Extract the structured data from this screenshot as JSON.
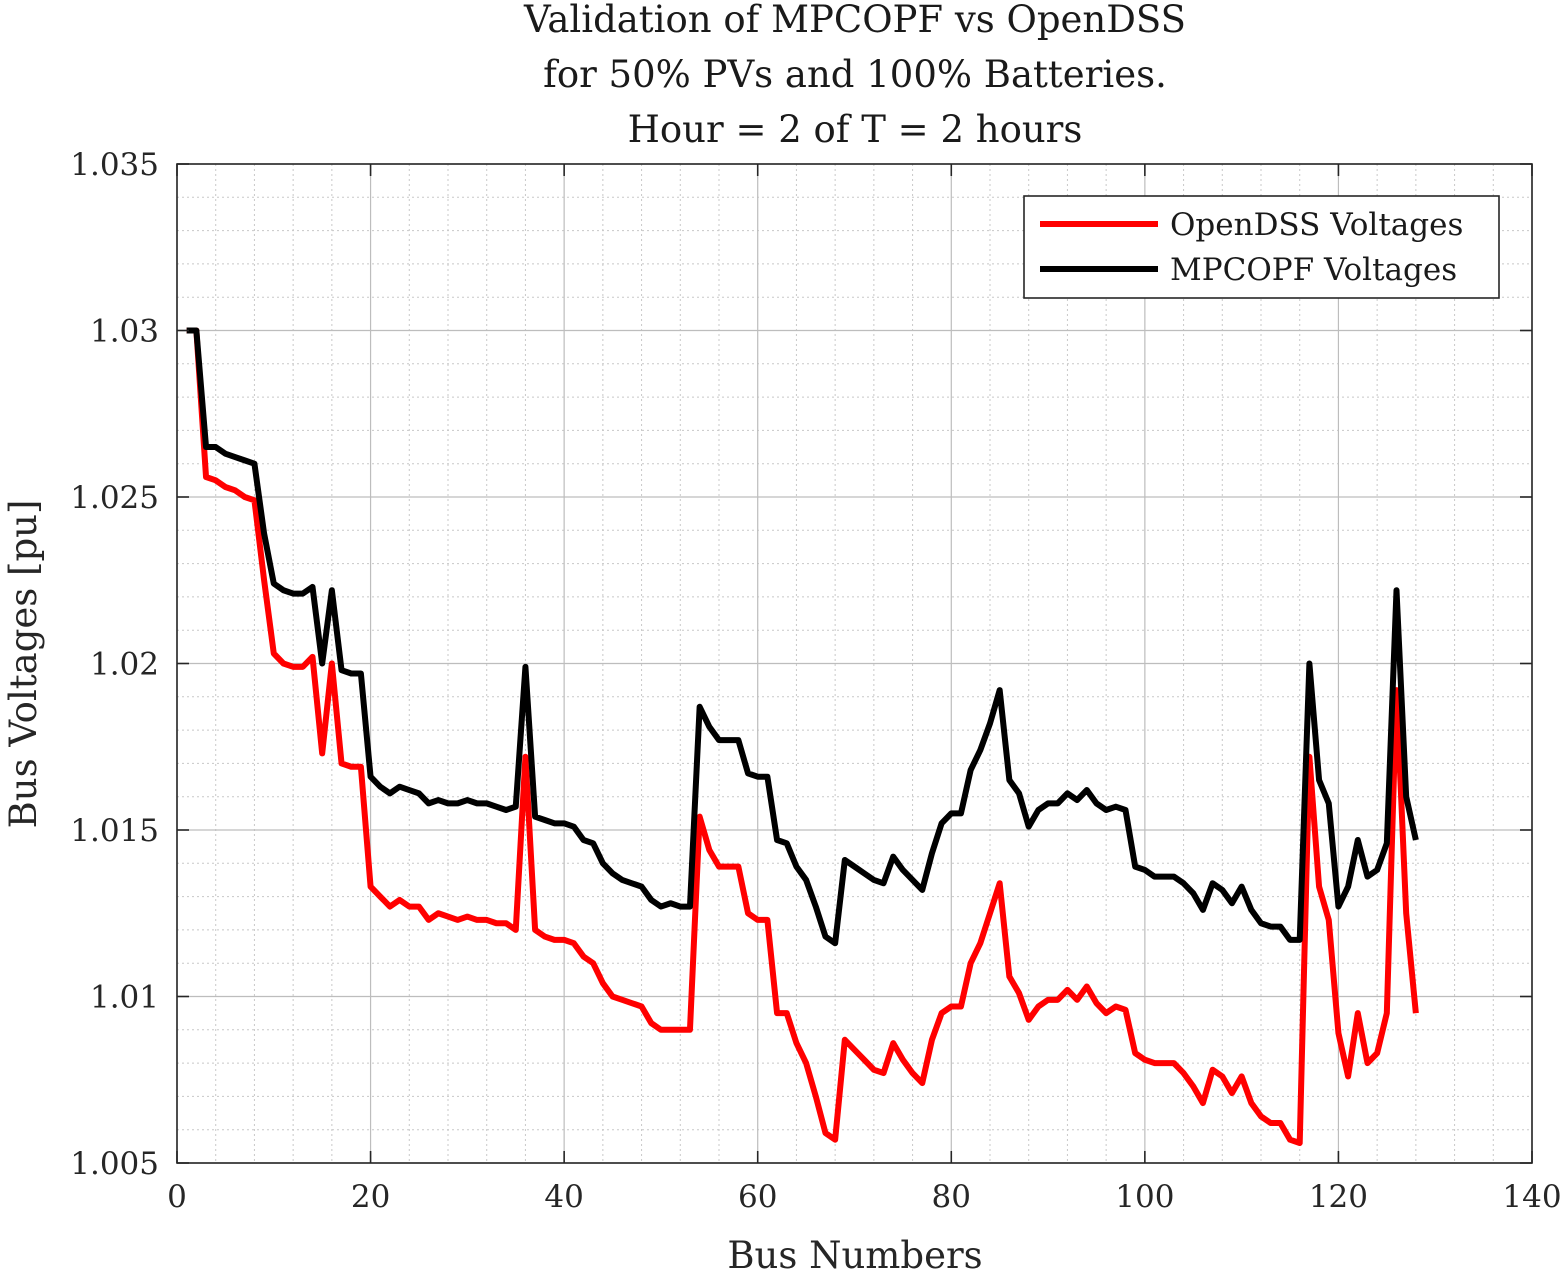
{
  "chart_data": {
    "type": "line",
    "title": [
      "Validation of MPCOPF vs OpenDSS",
      "for 50% PVs and 100% Batteries.",
      "Hour = 2 of T = 2 hours"
    ],
    "xlabel": "Bus Numbers",
    "ylabel": "Bus Voltages [pu]",
    "xlim": [
      0,
      140
    ],
    "ylim": [
      1.005,
      1.035
    ],
    "xticks": [
      0,
      20,
      40,
      60,
      80,
      100,
      120,
      140
    ],
    "xtick_labels": [
      "0",
      "20",
      "40",
      "60",
      "80",
      "100",
      "120",
      "140"
    ],
    "yticks": [
      1.005,
      1.01,
      1.015,
      1.02,
      1.025,
      1.03,
      1.035
    ],
    "ytick_labels": [
      "1.005",
      "1.01",
      "1.015",
      "1.02",
      "1.025",
      "1.03",
      "1.035"
    ],
    "grid": true,
    "minor_grid": true,
    "legend_position": "top-right",
    "series": [
      {
        "name": "OpenDSS Voltages",
        "color": "#ff0000",
        "x": [
          1,
          2,
          3,
          4,
          5,
          6,
          7,
          8,
          9,
          10,
          11,
          12,
          13,
          14,
          15,
          16,
          17,
          18,
          19,
          20,
          21,
          22,
          23,
          24,
          25,
          26,
          27,
          28,
          29,
          30,
          31,
          32,
          33,
          34,
          35,
          36,
          37,
          38,
          39,
          40,
          41,
          42,
          43,
          44,
          45,
          46,
          47,
          48,
          49,
          50,
          51,
          52,
          53,
          54,
          55,
          56,
          57,
          58,
          59,
          60,
          61,
          62,
          63,
          64,
          65,
          66,
          67,
          68,
          69,
          70,
          71,
          72,
          73,
          74,
          75,
          76,
          77,
          78,
          79,
          80,
          81,
          82,
          83,
          84,
          85,
          86,
          87,
          88,
          89,
          90,
          91,
          92,
          93,
          94,
          95,
          96,
          97,
          98,
          99,
          100,
          101,
          102,
          103,
          104,
          105,
          106,
          107,
          108,
          109,
          110,
          111,
          112,
          113,
          114,
          115,
          116,
          117,
          118,
          119,
          120,
          121,
          122,
          123,
          124,
          125,
          126,
          127,
          128
        ],
        "values": [
          1.03,
          1.03,
          1.0256,
          1.0255,
          1.0253,
          1.0252,
          1.025,
          1.0249,
          1.0225,
          1.0203,
          1.02,
          1.0199,
          1.0199,
          1.0202,
          1.0173,
          1.02,
          1.017,
          1.0169,
          1.0169,
          1.0133,
          1.013,
          1.0127,
          1.0129,
          1.0127,
          1.0127,
          1.0123,
          1.0125,
          1.0124,
          1.0123,
          1.0124,
          1.0123,
          1.0123,
          1.0122,
          1.0122,
          1.012,
          1.0172,
          1.012,
          1.0118,
          1.0117,
          1.0117,
          1.0116,
          1.0112,
          1.011,
          1.0104,
          1.01,
          1.0099,
          1.0098,
          1.0097,
          1.0092,
          1.009,
          1.009,
          1.009,
          1.009,
          1.0154,
          1.0144,
          1.0139,
          1.0139,
          1.0139,
          1.0125,
          1.0123,
          1.0123,
          1.0095,
          1.0095,
          1.0086,
          1.008,
          1.007,
          1.0059,
          1.0057,
          1.0087,
          1.0084,
          1.0081,
          1.0078,
          1.0077,
          1.0086,
          1.0081,
          1.0077,
          1.0074,
          1.0087,
          1.0095,
          1.0097,
          1.0097,
          1.011,
          1.0116,
          1.0125,
          1.0134,
          1.0106,
          1.0101,
          1.0093,
          1.0097,
          1.0099,
          1.0099,
          1.0102,
          1.0099,
          1.0103,
          1.0098,
          1.0095,
          1.0097,
          1.0096,
          1.0083,
          1.0081,
          1.008,
          1.008,
          1.008,
          1.0077,
          1.0073,
          1.0068,
          1.0078,
          1.0076,
          1.0071,
          1.0076,
          1.0068,
          1.0064,
          1.0062,
          1.0062,
          1.0057,
          1.0056,
          1.0172,
          1.0133,
          1.0123,
          1.0089,
          1.0076,
          1.0095,
          1.008,
          1.0083,
          1.0095,
          1.0192,
          1.0125,
          1.0095
        ]
      },
      {
        "name": "MPCOPF Voltages",
        "color": "#000000",
        "x": [
          1,
          2,
          3,
          4,
          5,
          6,
          7,
          8,
          9,
          10,
          11,
          12,
          13,
          14,
          15,
          16,
          17,
          18,
          19,
          20,
          21,
          22,
          23,
          24,
          25,
          26,
          27,
          28,
          29,
          30,
          31,
          32,
          33,
          34,
          35,
          36,
          37,
          38,
          39,
          40,
          41,
          42,
          43,
          44,
          45,
          46,
          47,
          48,
          49,
          50,
          51,
          52,
          53,
          54,
          55,
          56,
          57,
          58,
          59,
          60,
          61,
          62,
          63,
          64,
          65,
          66,
          67,
          68,
          69,
          70,
          71,
          72,
          73,
          74,
          75,
          76,
          77,
          78,
          79,
          80,
          81,
          82,
          83,
          84,
          85,
          86,
          87,
          88,
          89,
          90,
          91,
          92,
          93,
          94,
          95,
          96,
          97,
          98,
          99,
          100,
          101,
          102,
          103,
          104,
          105,
          106,
          107,
          108,
          109,
          110,
          111,
          112,
          113,
          114,
          115,
          116,
          117,
          118,
          119,
          120,
          121,
          122,
          123,
          124,
          125,
          126,
          127,
          128
        ],
        "values": [
          1.03,
          1.03,
          1.0265,
          1.0265,
          1.0263,
          1.0262,
          1.0261,
          1.026,
          1.0239,
          1.0224,
          1.0222,
          1.0221,
          1.0221,
          1.0223,
          1.02,
          1.0222,
          1.0198,
          1.0197,
          1.0197,
          1.0166,
          1.0163,
          1.0161,
          1.0163,
          1.0162,
          1.0161,
          1.0158,
          1.0159,
          1.0158,
          1.0158,
          1.0159,
          1.0158,
          1.0158,
          1.0157,
          1.0156,
          1.0157,
          1.0199,
          1.0154,
          1.0153,
          1.0152,
          1.0152,
          1.0151,
          1.0147,
          1.0146,
          1.014,
          1.0137,
          1.0135,
          1.0134,
          1.0133,
          1.0129,
          1.0127,
          1.0128,
          1.0127,
          1.0127,
          1.0187,
          1.0181,
          1.0177,
          1.0177,
          1.0177,
          1.0167,
          1.0166,
          1.0166,
          1.0147,
          1.0146,
          1.0139,
          1.0135,
          1.0127,
          1.0118,
          1.0116,
          1.0141,
          1.0139,
          1.0137,
          1.0135,
          1.0134,
          1.0142,
          1.0138,
          1.0135,
          1.0132,
          1.0143,
          1.0152,
          1.0155,
          1.0155,
          1.0168,
          1.0174,
          1.0182,
          1.0192,
          1.0165,
          1.0161,
          1.0151,
          1.0156,
          1.0158,
          1.0158,
          1.0161,
          1.0159,
          1.0162,
          1.0158,
          1.0156,
          1.0157,
          1.0156,
          1.0139,
          1.0138,
          1.0136,
          1.0136,
          1.0136,
          1.0134,
          1.0131,
          1.0126,
          1.0134,
          1.0132,
          1.0128,
          1.0133,
          1.0126,
          1.0122,
          1.0121,
          1.0121,
          1.0117,
          1.0117,
          1.02,
          1.0165,
          1.0158,
          1.0127,
          1.0133,
          1.0147,
          1.0136,
          1.0138,
          1.0146,
          1.0222,
          1.016,
          1.0147
        ]
      }
    ]
  }
}
